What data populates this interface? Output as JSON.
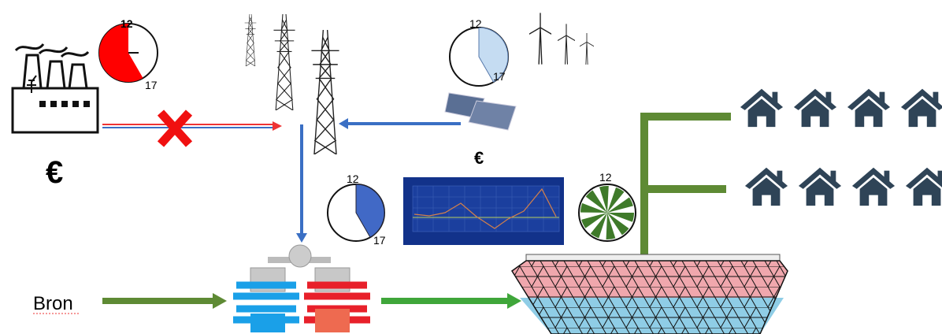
{
  "clocks": [
    {
      "top": "12",
      "bottom": "17"
    },
    {
      "top": "12",
      "bottom": "17"
    },
    {
      "top": "12",
      "bottom": "17"
    },
    {
      "top": "12"
    }
  ],
  "prices": [
    "€",
    "€"
  ],
  "source": "Bron"
}
